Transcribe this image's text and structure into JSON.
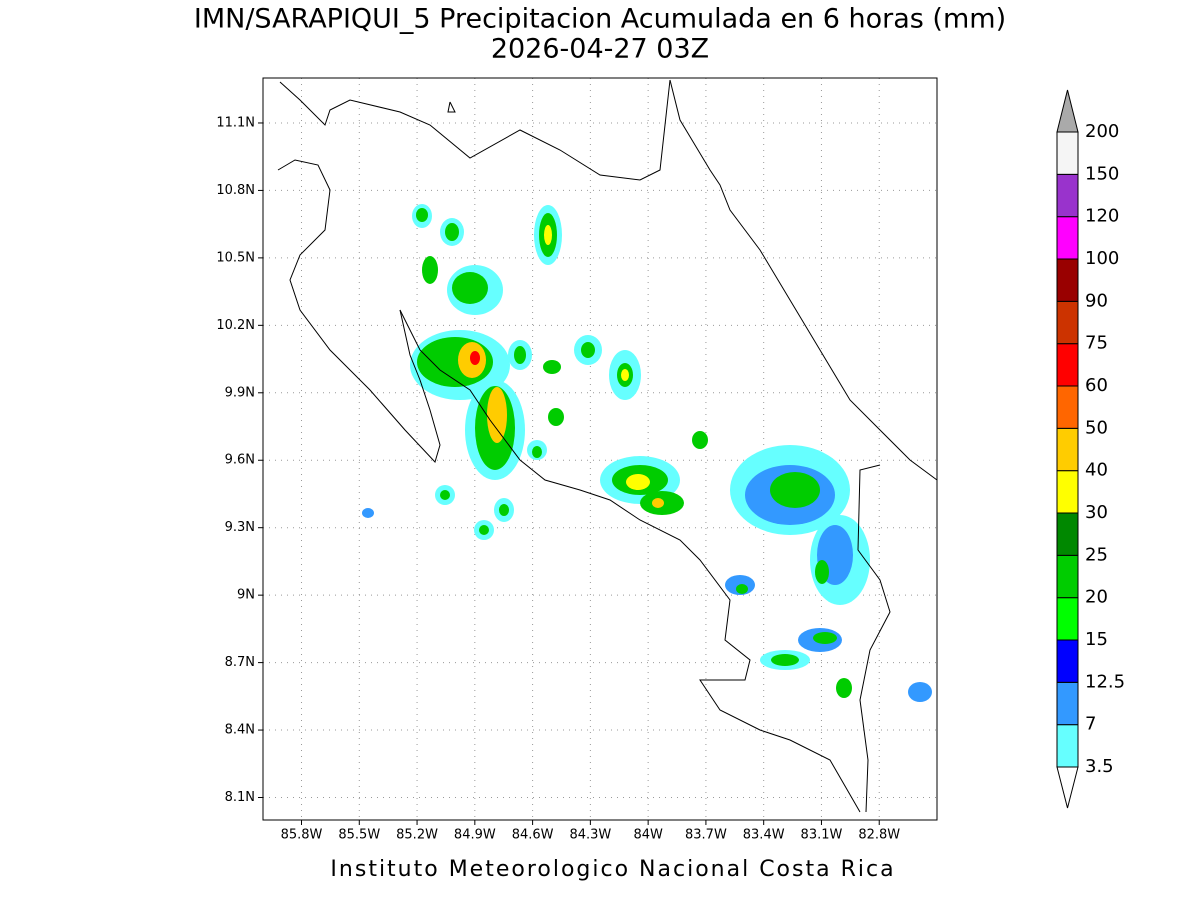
{
  "map": {
    "title": "IMN/SARAPIQUI_5 Precipitacion Acumulada en 6 horas (mm)",
    "subtitle": "2026-04-27 03Z",
    "xlim": [
      -86.0,
      -82.5
    ],
    "ylim": [
      8.0,
      11.3
    ],
    "xticks": [
      {
        "value": -85.8,
        "label": "85.8W"
      },
      {
        "value": -85.5,
        "label": "85.5W"
      },
      {
        "value": -85.2,
        "label": "85.2W"
      },
      {
        "value": -84.9,
        "label": "84.9W"
      },
      {
        "value": -84.6,
        "label": "84.6W"
      },
      {
        "value": -84.3,
        "label": "84.3W"
      },
      {
        "value": -84.0,
        "label": "84W"
      },
      {
        "value": -83.7,
        "label": "83.7W"
      },
      {
        "value": -83.4,
        "label": "83.4W"
      },
      {
        "value": -83.1,
        "label": "83.1W"
      },
      {
        "value": -82.8,
        "label": "82.8W"
      }
    ],
    "yticks": [
      {
        "value": 8.1,
        "label": "8.1N"
      },
      {
        "value": 8.4,
        "label": "8.4N"
      },
      {
        "value": 8.7,
        "label": "8.7N"
      },
      {
        "value": 9.0,
        "label": "9N"
      },
      {
        "value": 9.3,
        "label": "9.3N"
      },
      {
        "value": 9.6,
        "label": "9.6N"
      },
      {
        "value": 9.9,
        "label": "9.9N"
      },
      {
        "value": 10.2,
        "label": "10.2N"
      },
      {
        "value": 10.5,
        "label": "10.5N"
      },
      {
        "value": 10.8,
        "label": "10.8N"
      },
      {
        "value": 11.1,
        "label": "11.1N"
      }
    ],
    "grid": true,
    "colorbar": {
      "levels": [
        3.5,
        7,
        12.5,
        15,
        20,
        25,
        30,
        40,
        50,
        60,
        75,
        90,
        100,
        120,
        150,
        200
      ],
      "colors": [
        "#ffffff",
        "#66ffff",
        "#3399ff",
        "#0000ff",
        "#00ff00",
        "#00cc00",
        "#008800",
        "#ffff00",
        "#ffcc00",
        "#ff6600",
        "#ff0000",
        "#cc3300",
        "#990000",
        "#ff00ff",
        "#9933cc",
        "#f5f5f5",
        "#aaaaaa"
      ]
    },
    "footer": "Instituto Meteorologico Nacional Costa Rica"
  }
}
